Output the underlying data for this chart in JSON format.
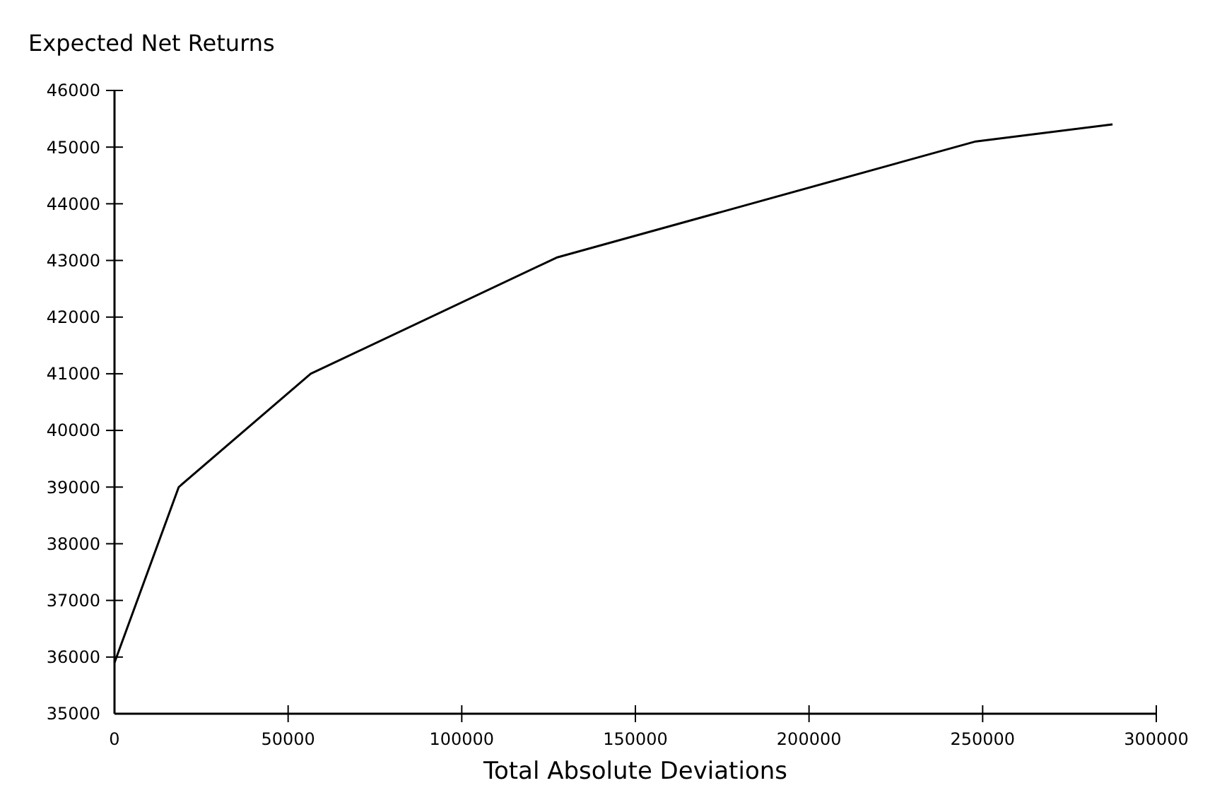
{
  "chart_data": {
    "type": "line",
    "ylabel": "Expected Net Returns",
    "xlabel": "Total Absolute Deviations",
    "x": [
      0,
      18500,
      56500,
      127300,
      248000,
      287400
    ],
    "values": [
      35900,
      39000,
      41000,
      43050,
      45100,
      45400
    ],
    "color": "#000000",
    "marker": "none",
    "grid": false,
    "xlim": [
      0,
      300000
    ],
    "xticks": [
      0,
      50000,
      100000,
      150000,
      200000,
      250000,
      300000
    ],
    "ylim": [
      35000,
      46000
    ],
    "yticks": [
      35000,
      36000,
      37000,
      38000,
      39000,
      40000,
      41000,
      42000,
      43000,
      44000,
      45000,
      46000
    ]
  }
}
